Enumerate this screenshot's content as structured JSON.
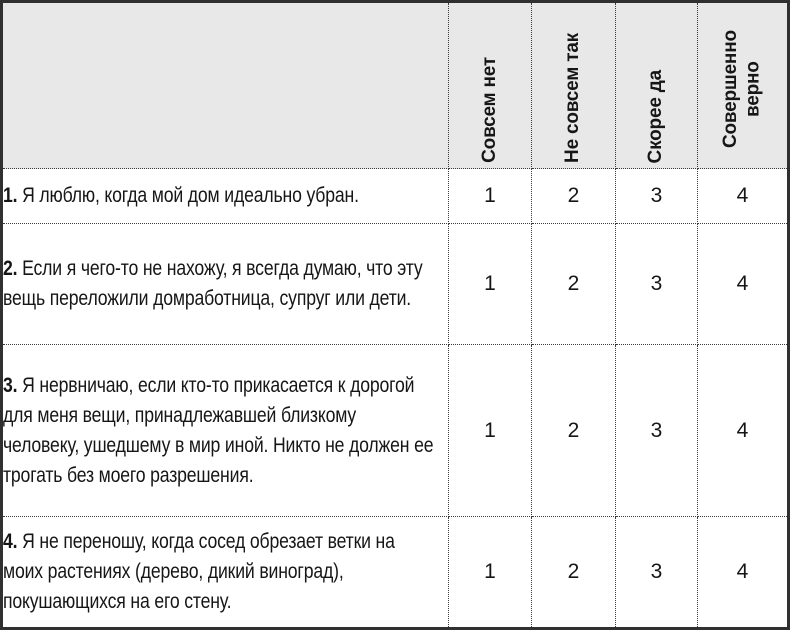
{
  "table": {
    "columns": [
      "Совсем нет",
      "Не совсем так",
      "Скорее да",
      "Совершенно верно"
    ],
    "rows": [
      {
        "num": "1.",
        "text": "Я люблю, когда мой дом идеально убран.",
        "ratings": [
          "1",
          "2",
          "3",
          "4"
        ]
      },
      {
        "num": "2.",
        "text": "Если я чего-то не нахожу, я всегда думаю, что эту вещь переложили домработница, супруг или дети.",
        "ratings": [
          "1",
          "2",
          "3",
          "4"
        ]
      },
      {
        "num": "3.",
        "text": "Я нервничаю, если кто-то прикасается к дорогой для меня вещи, принадлежавшей близкому человеку, ушедшему в мир иной. Никто не должен ее трогать без моего разрешения.",
        "ratings": [
          "1",
          "2",
          "3",
          "4"
        ]
      },
      {
        "num": "4.",
        "text": "Я не переношу, когда сосед обрезает ветки на моих растениях (дерево, дикий виноград), покушающихся на его стену.",
        "ratings": [
          "1",
          "2",
          "3",
          "4"
        ]
      }
    ],
    "colors": {
      "header_bg": "#e8e8e8",
      "outer_border": "#303030",
      "dotted_border": "#3a3a3a",
      "text": "#161616"
    }
  }
}
